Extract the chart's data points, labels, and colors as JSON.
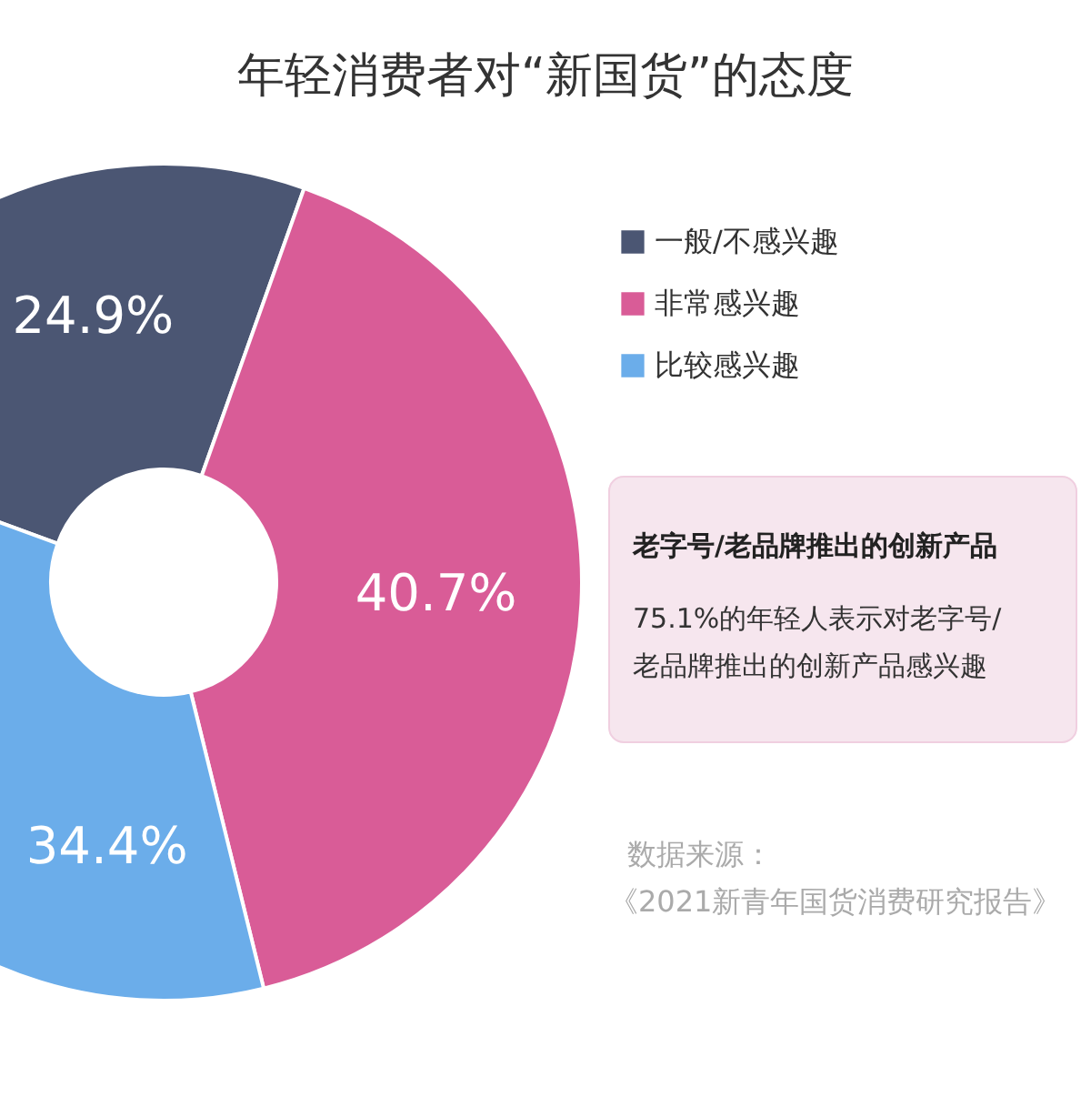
{
  "chart_data": {
    "type": "donut",
    "title": "年轻消费者对“新国货”的态度",
    "categories": [
      "一般/不感兴趣",
      "非常感兴趣",
      "比较感兴趣"
    ],
    "values": [
      24.9,
      40.7,
      34.4
    ],
    "value_labels": [
      "24.9%",
      "40.7%",
      "34.4%"
    ],
    "colors": [
      "#4b5673",
      "#d95c97",
      "#6badea"
    ],
    "legend": "top right",
    "annotations": [
      "老字号/老品牌推出的创新产品",
      "75.1%的年轻人表示对老字号/老品牌推出的创新产品感兴趣",
      "数据来源：《2021新青年国货消费研究报告》"
    ]
  }
}
